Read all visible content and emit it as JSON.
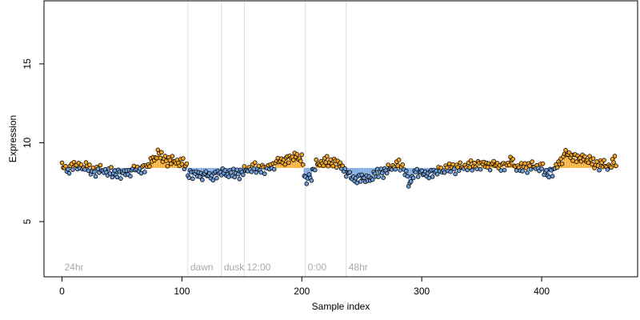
{
  "chart_data": {
    "type": "scatter",
    "title": "",
    "xlabel": "Sample index",
    "ylabel": "Expression",
    "xlim": [
      -15,
      480
    ],
    "ylim": [
      1.5,
      19
    ],
    "xticks": [
      0,
      100,
      200,
      300,
      400
    ],
    "yticks": [
      5,
      10,
      15
    ],
    "baseline": 8.4,
    "colors": {
      "above": "#f5a623",
      "below": "#6f9fdb",
      "point_edge": "#000000",
      "annotation": "#a9a9a9",
      "divider": "#dcdcdc"
    },
    "annotations": [
      {
        "x": 0,
        "label": "24hr"
      },
      {
        "x": 105,
        "label": "dawn"
      },
      {
        "x": 133,
        "label": "dusk"
      },
      {
        "x": 152,
        "label": "12:00"
      },
      {
        "x": 203,
        "label": "0:00"
      },
      {
        "x": 237,
        "label": "48hr"
      }
    ],
    "dividers": [
      105,
      133,
      152,
      203,
      237
    ],
    "series_keypoints": [
      [
        0,
        8.5
      ],
      [
        5,
        8.3
      ],
      [
        10,
        8.6
      ],
      [
        15,
        8.4
      ],
      [
        20,
        8.5
      ],
      [
        25,
        8.1
      ],
      [
        30,
        8.3
      ],
      [
        40,
        8.1
      ],
      [
        50,
        8.0
      ],
      [
        60,
        8.3
      ],
      [
        70,
        8.4
      ],
      [
        76,
        8.9
      ],
      [
        80,
        9.3
      ],
      [
        85,
        8.9
      ],
      [
        95,
        8.8
      ],
      [
        100,
        8.7
      ],
      [
        104,
        8.5
      ],
      [
        105,
        8.0
      ],
      [
        115,
        8.0
      ],
      [
        125,
        7.9
      ],
      [
        133,
        8.1
      ],
      [
        140,
        8.0
      ],
      [
        145,
        8.0
      ],
      [
        150,
        8.1
      ],
      [
        155,
        8.3
      ],
      [
        160,
        8.4
      ],
      [
        170,
        8.3
      ],
      [
        180,
        8.8
      ],
      [
        190,
        9.0
      ],
      [
        195,
        9.1
      ],
      [
        200,
        9.0
      ],
      [
        203,
        7.5
      ],
      [
        207,
        7.8
      ],
      [
        212,
        8.6
      ],
      [
        220,
        8.8
      ],
      [
        230,
        8.7
      ],
      [
        237,
        8.2
      ],
      [
        242,
        7.7
      ],
      [
        250,
        7.8
      ],
      [
        255,
        7.6
      ],
      [
        260,
        7.9
      ],
      [
        270,
        8.2
      ],
      [
        280,
        8.6
      ],
      [
        285,
        8.4
      ],
      [
        290,
        7.3
      ],
      [
        295,
        8.3
      ],
      [
        300,
        8.0
      ],
      [
        310,
        8.1
      ],
      [
        320,
        8.3
      ],
      [
        330,
        8.4
      ],
      [
        340,
        8.5
      ],
      [
        350,
        8.6
      ],
      [
        360,
        8.6
      ],
      [
        370,
        8.5
      ],
      [
        375,
        8.9
      ],
      [
        380,
        8.3
      ],
      [
        390,
        8.5
      ],
      [
        400,
        8.4
      ],
      [
        405,
        8.0
      ],
      [
        410,
        8.2
      ],
      [
        415,
        8.8
      ],
      [
        420,
        9.3
      ],
      [
        425,
        9.2
      ],
      [
        430,
        9.0
      ],
      [
        440,
        8.9
      ],
      [
        445,
        8.5
      ],
      [
        450,
        8.7
      ],
      [
        455,
        8.4
      ],
      [
        460,
        8.8
      ]
    ],
    "noise": [
      0.12,
      -0.18,
      0.07,
      0.22,
      -0.09,
      0.15,
      -0.25,
      0.05,
      0.18,
      -0.12,
      0.27,
      -0.06,
      0.1,
      -0.2,
      0.16,
      -0.03,
      0.21,
      -0.15,
      0.02,
      -0.28,
      0.13,
      0.08,
      -0.11,
      0.24,
      -0.17,
      0.04,
      0.19,
      -0.08,
      -0.22,
      0.11,
      0.06,
      -0.14,
      0.26,
      -0.04,
      0.09,
      -0.19,
      0.14,
      0.01,
      -0.26,
      0.17,
      -0.07,
      0.23,
      -0.13,
      0.03,
      0.2,
      -0.1,
      -0.24,
      0.12,
      0.05,
      -0.16,
      0.25,
      -0.02,
      0.15,
      -0.21,
      0.08,
      -0.05,
      0.18,
      -0.27,
      0.1,
      0.0
    ],
    "grid": false,
    "legend": "none"
  }
}
